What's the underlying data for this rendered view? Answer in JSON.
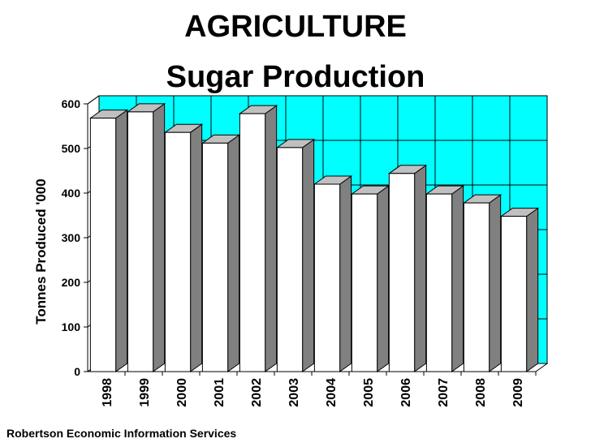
{
  "title_line1": "AGRICULTURE",
  "title_line2": "Sugar Production",
  "source": "Robertson Economic Information Services",
  "chart_data": {
    "type": "bar",
    "title": "AGRICULTURE Sugar Production",
    "xlabel": "",
    "ylabel": "Tonnes Produced '000",
    "categories": [
      "1998",
      "1999",
      "2000",
      "2001",
      "2002",
      "2003",
      "2004",
      "2005",
      "2006",
      "2007",
      "2008",
      "2009"
    ],
    "values": [
      568,
      582,
      536,
      512,
      578,
      502,
      420,
      398,
      444,
      398,
      378,
      348
    ],
    "ylim": [
      0,
      600
    ],
    "yticks": [
      0,
      100,
      200,
      300,
      400,
      500,
      600
    ],
    "grid": true,
    "three_d": true,
    "colors": {
      "plot_background": "#00ffff",
      "bar_front": "#ffffff",
      "bar_side": "#808080",
      "bar_top": "#c0c0c0",
      "grid": "#000000"
    }
  }
}
